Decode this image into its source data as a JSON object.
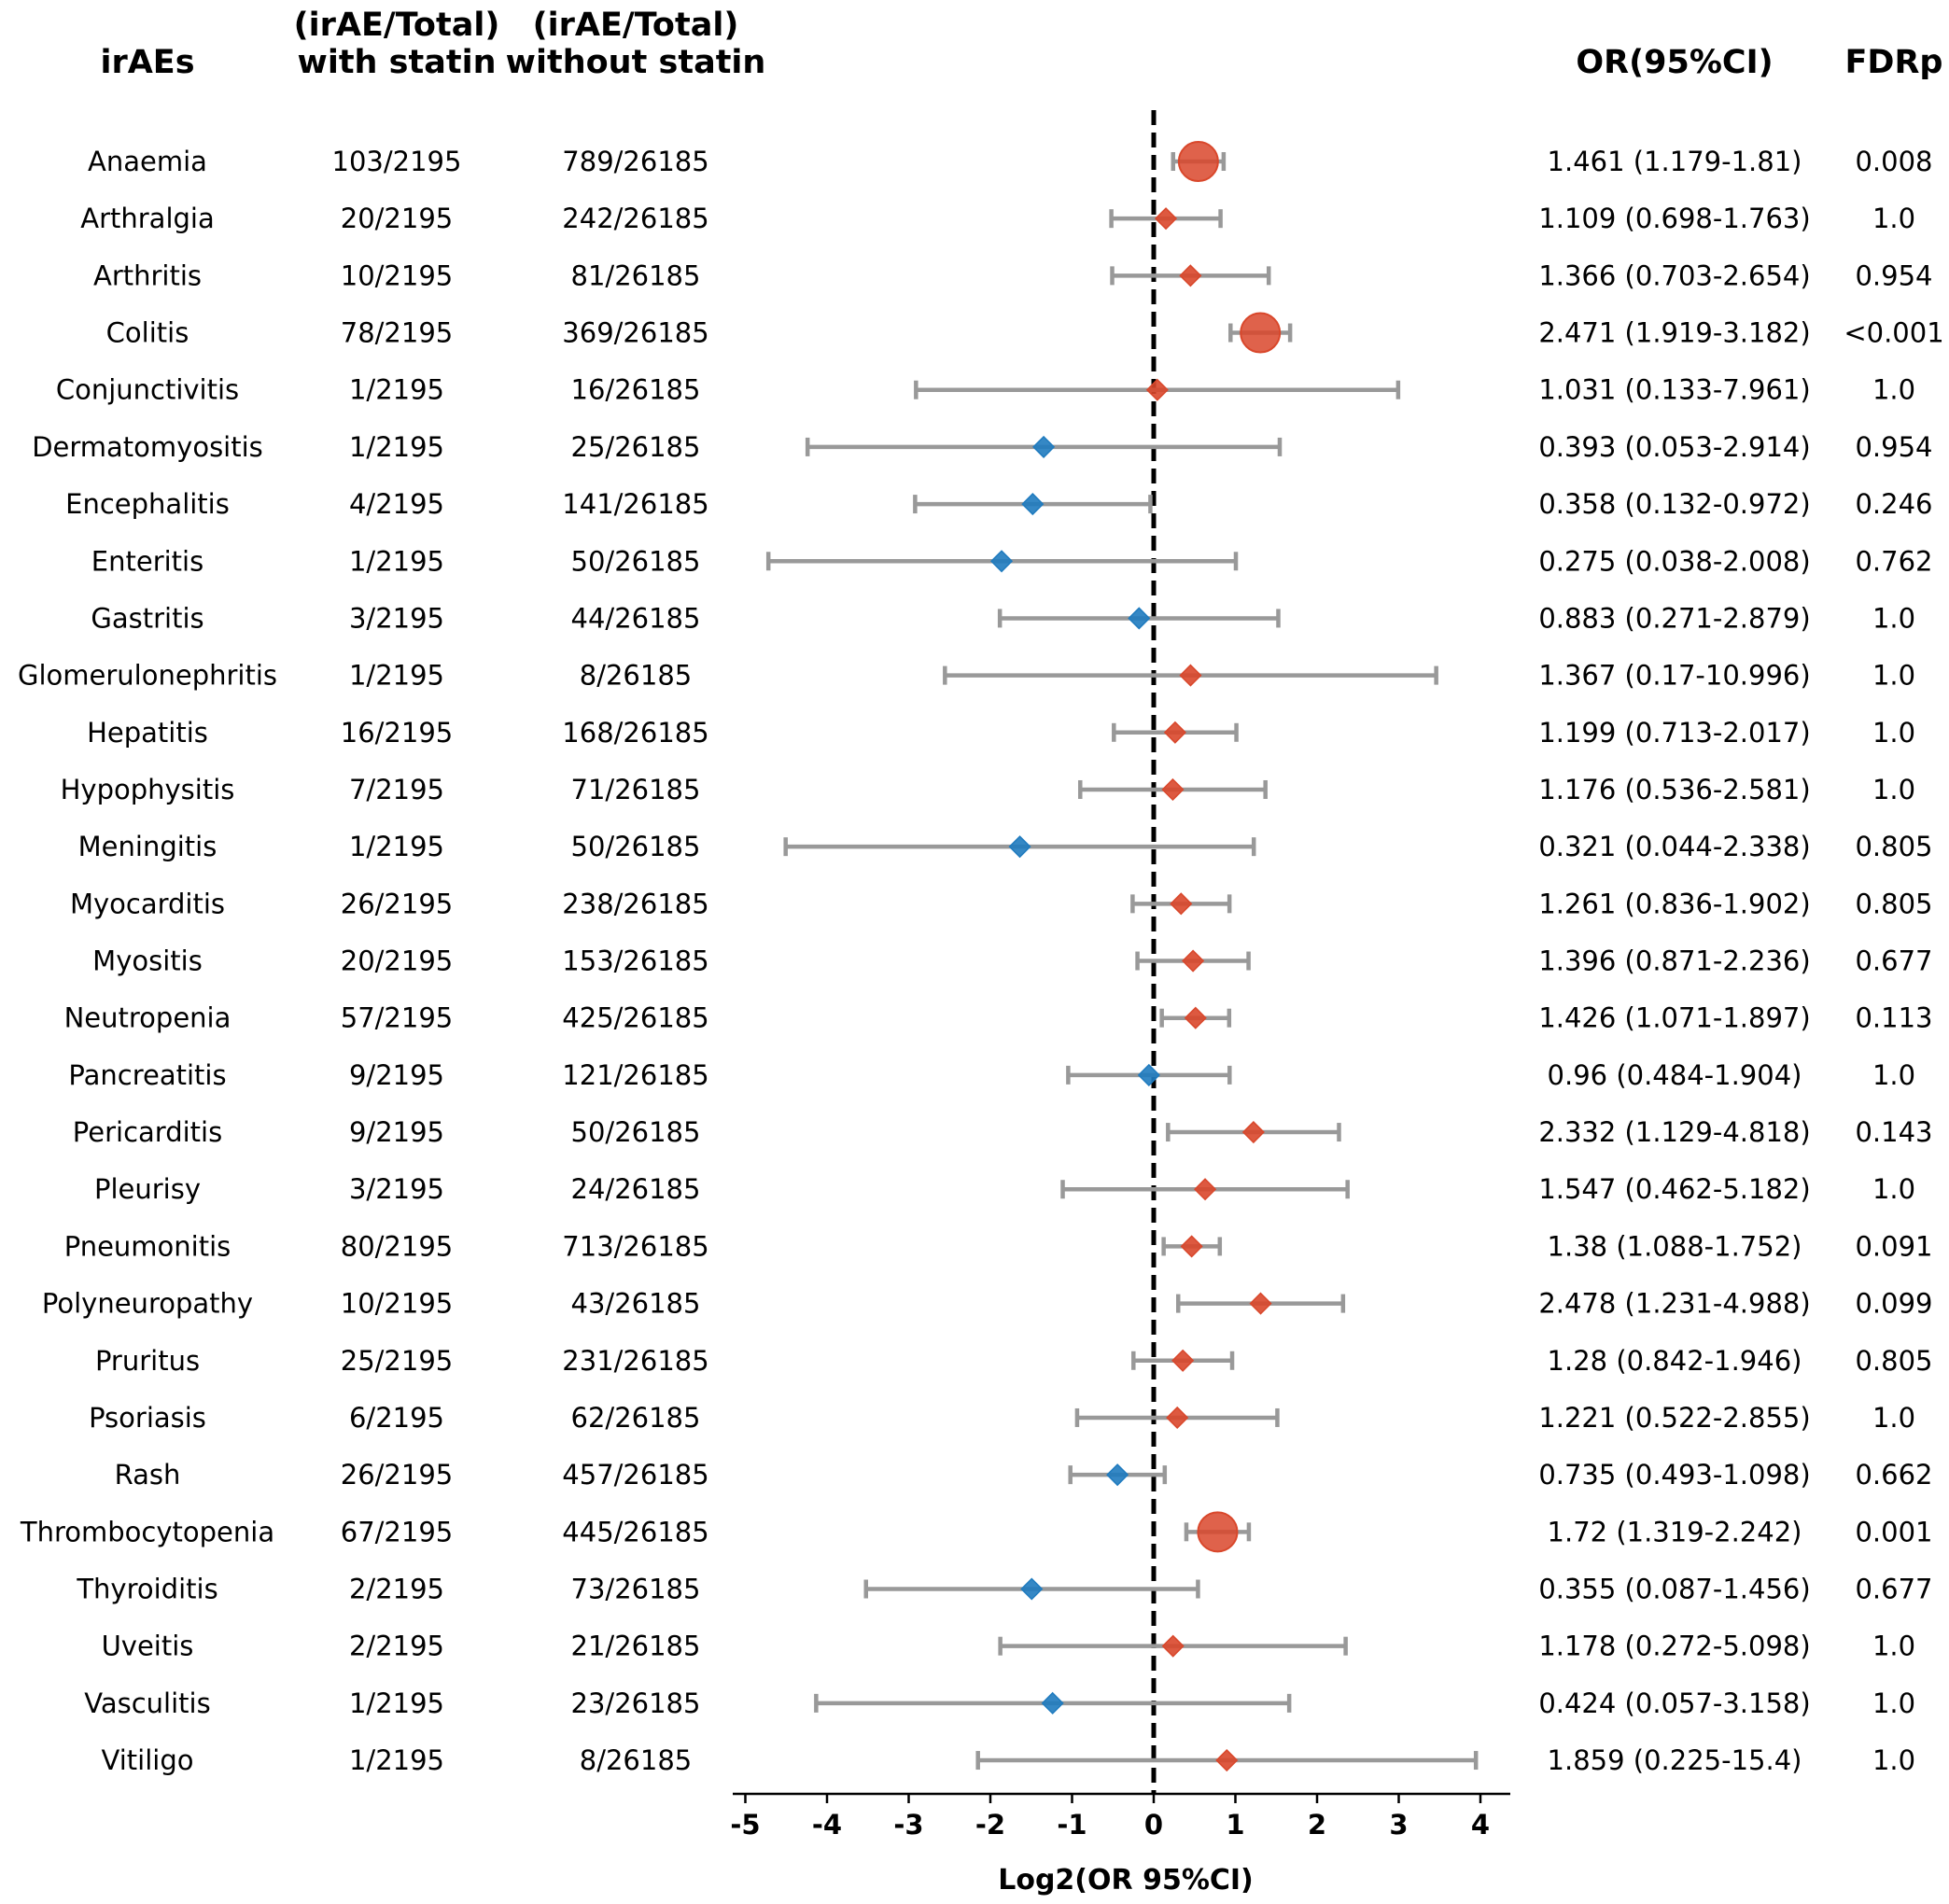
{
  "headers": {
    "irae": "irAEs",
    "with_line1": "(irAE/Total)",
    "with_line2": "with statin",
    "without_line1": "(irAE/Total)",
    "without_line2": "without statin",
    "or": "OR(95%CI)",
    "fdr": "FDRp"
  },
  "colors": {
    "increased": "#d9472b",
    "decreased": "#1f7bbf",
    "errorbar": "#999999",
    "refline": "#000000"
  },
  "chart_data": {
    "type": "forest",
    "xlabel": "Log2(OR 95%CI)",
    "xlim": [
      -5.2,
      4.35
    ],
    "ticks": [
      -5,
      -4,
      -3,
      -2,
      -1,
      0,
      1,
      2,
      3,
      4
    ],
    "tick_labels": [
      "-5",
      "-4",
      "-3",
      "-2",
      "-1",
      "0",
      "1",
      "2",
      "3",
      "4"
    ],
    "reference_line": 0,
    "significant_marker": "large circle",
    "rows": [
      {
        "name": "Anaemia",
        "with_statin": "103/2195",
        "without_statin": "789/26185",
        "or_text": "1.461 (1.179-1.81)",
        "fdr": "0.008",
        "or": 1.461,
        "lo": 1.179,
        "hi": 1.81,
        "significant": true
      },
      {
        "name": "Arthralgia",
        "with_statin": "20/2195",
        "without_statin": "242/26185",
        "or_text": "1.109 (0.698-1.763)",
        "fdr": "1.0",
        "or": 1.109,
        "lo": 0.698,
        "hi": 1.763,
        "significant": false
      },
      {
        "name": "Arthritis",
        "with_statin": "10/2195",
        "without_statin": "81/26185",
        "or_text": "1.366 (0.703-2.654)",
        "fdr": "0.954",
        "or": 1.366,
        "lo": 0.703,
        "hi": 2.654,
        "significant": false
      },
      {
        "name": "Colitis",
        "with_statin": "78/2195",
        "without_statin": "369/26185",
        "or_text": "2.471 (1.919-3.182)",
        "fdr": "<0.001",
        "or": 2.471,
        "lo": 1.919,
        "hi": 3.182,
        "significant": true
      },
      {
        "name": "Conjunctivitis",
        "with_statin": "1/2195",
        "without_statin": "16/26185",
        "or_text": "1.031 (0.133-7.961)",
        "fdr": "1.0",
        "or": 1.031,
        "lo": 0.133,
        "hi": 7.961,
        "significant": false
      },
      {
        "name": "Dermatomyositis",
        "with_statin": "1/2195",
        "without_statin": "25/26185",
        "or_text": "0.393 (0.053-2.914)",
        "fdr": "0.954",
        "or": 0.393,
        "lo": 0.053,
        "hi": 2.914,
        "significant": false
      },
      {
        "name": "Encephalitis",
        "with_statin": "4/2195",
        "without_statin": "141/26185",
        "or_text": "0.358 (0.132-0.972)",
        "fdr": "0.246",
        "or": 0.358,
        "lo": 0.132,
        "hi": 0.972,
        "significant": false
      },
      {
        "name": "Enteritis",
        "with_statin": "1/2195",
        "without_statin": "50/26185",
        "or_text": "0.275 (0.038-2.008)",
        "fdr": "0.762",
        "or": 0.275,
        "lo": 0.038,
        "hi": 2.008,
        "significant": false
      },
      {
        "name": "Gastritis",
        "with_statin": "3/2195",
        "without_statin": "44/26185",
        "or_text": "0.883 (0.271-2.879)",
        "fdr": "1.0",
        "or": 0.883,
        "lo": 0.271,
        "hi": 2.879,
        "significant": false
      },
      {
        "name": "Glomerulonephritis",
        "with_statin": "1/2195",
        "without_statin": "8/26185",
        "or_text": "1.367 (0.17-10.996)",
        "fdr": "1.0",
        "or": 1.367,
        "lo": 0.17,
        "hi": 10.996,
        "significant": false
      },
      {
        "name": "Hepatitis",
        "with_statin": "16/2195",
        "without_statin": "168/26185",
        "or_text": "1.199 (0.713-2.017)",
        "fdr": "1.0",
        "or": 1.199,
        "lo": 0.713,
        "hi": 2.017,
        "significant": false
      },
      {
        "name": "Hypophysitis",
        "with_statin": "7/2195",
        "without_statin": "71/26185",
        "or_text": "1.176 (0.536-2.581)",
        "fdr": "1.0",
        "or": 1.176,
        "lo": 0.536,
        "hi": 2.581,
        "significant": false
      },
      {
        "name": "Meningitis",
        "with_statin": "1/2195",
        "without_statin": "50/26185",
        "or_text": "0.321 (0.044-2.338)",
        "fdr": "0.805",
        "or": 0.321,
        "lo": 0.044,
        "hi": 2.338,
        "significant": false
      },
      {
        "name": "Myocarditis",
        "with_statin": "26/2195",
        "without_statin": "238/26185",
        "or_text": "1.261 (0.836-1.902)",
        "fdr": "0.805",
        "or": 1.261,
        "lo": 0.836,
        "hi": 1.902,
        "significant": false
      },
      {
        "name": "Myositis",
        "with_statin": "20/2195",
        "without_statin": "153/26185",
        "or_text": "1.396 (0.871-2.236)",
        "fdr": "0.677",
        "or": 1.396,
        "lo": 0.871,
        "hi": 2.236,
        "significant": false
      },
      {
        "name": "Neutropenia",
        "with_statin": "57/2195",
        "without_statin": "425/26185",
        "or_text": "1.426 (1.071-1.897)",
        "fdr": "0.113",
        "or": 1.426,
        "lo": 1.071,
        "hi": 1.897,
        "significant": false
      },
      {
        "name": "Pancreatitis",
        "with_statin": "9/2195",
        "without_statin": "121/26185",
        "or_text": "0.96 (0.484-1.904)",
        "fdr": "1.0",
        "or": 0.96,
        "lo": 0.484,
        "hi": 1.904,
        "significant": false
      },
      {
        "name": "Pericarditis",
        "with_statin": "9/2195",
        "without_statin": "50/26185",
        "or_text": "2.332 (1.129-4.818)",
        "fdr": "0.143",
        "or": 2.332,
        "lo": 1.129,
        "hi": 4.818,
        "significant": false
      },
      {
        "name": "Pleurisy",
        "with_statin": "3/2195",
        "without_statin": "24/26185",
        "or_text": "1.547 (0.462-5.182)",
        "fdr": "1.0",
        "or": 1.547,
        "lo": 0.462,
        "hi": 5.182,
        "significant": false
      },
      {
        "name": "Pneumonitis",
        "with_statin": "80/2195",
        "without_statin": "713/26185",
        "or_text": "1.38 (1.088-1.752)",
        "fdr": "0.091",
        "or": 1.38,
        "lo": 1.088,
        "hi": 1.752,
        "significant": false
      },
      {
        "name": "Polyneuropathy",
        "with_statin": "10/2195",
        "without_statin": "43/26185",
        "or_text": "2.478 (1.231-4.988)",
        "fdr": "0.099",
        "or": 2.478,
        "lo": 1.231,
        "hi": 4.988,
        "significant": false
      },
      {
        "name": "Pruritus",
        "with_statin": "25/2195",
        "without_statin": "231/26185",
        "or_text": "1.28 (0.842-1.946)",
        "fdr": "0.805",
        "or": 1.28,
        "lo": 0.842,
        "hi": 1.946,
        "significant": false
      },
      {
        "name": "Psoriasis",
        "with_statin": "6/2195",
        "without_statin": "62/26185",
        "or_text": "1.221 (0.522-2.855)",
        "fdr": "1.0",
        "or": 1.221,
        "lo": 0.522,
        "hi": 2.855,
        "significant": false
      },
      {
        "name": "Rash",
        "with_statin": "26/2195",
        "without_statin": "457/26185",
        "or_text": "0.735 (0.493-1.098)",
        "fdr": "0.662",
        "or": 0.735,
        "lo": 0.493,
        "hi": 1.098,
        "significant": false
      },
      {
        "name": "Thrombocytopenia",
        "with_statin": "67/2195",
        "without_statin": "445/26185",
        "or_text": "1.72 (1.319-2.242)",
        "fdr": "0.001",
        "or": 1.72,
        "lo": 1.319,
        "hi": 2.242,
        "significant": true
      },
      {
        "name": "Thyroiditis",
        "with_statin": "2/2195",
        "without_statin": "73/26185",
        "or_text": "0.355 (0.087-1.456)",
        "fdr": "0.677",
        "or": 0.355,
        "lo": 0.087,
        "hi": 1.456,
        "significant": false
      },
      {
        "name": "Uveitis",
        "with_statin": "2/2195",
        "without_statin": "21/26185",
        "or_text": "1.178 (0.272-5.098)",
        "fdr": "1.0",
        "or": 1.178,
        "lo": 0.272,
        "hi": 5.098,
        "significant": false
      },
      {
        "name": "Vasculitis",
        "with_statin": "1/2195",
        "without_statin": "23/26185",
        "or_text": "0.424 (0.057-3.158)",
        "fdr": "1.0",
        "or": 0.424,
        "lo": 0.057,
        "hi": 3.158,
        "significant": false
      },
      {
        "name": "Vitiligo",
        "with_statin": "1/2195",
        "without_statin": "8/26185",
        "or_text": "1.859 (0.225-15.4)",
        "fdr": "1.0",
        "or": 1.859,
        "lo": 0.225,
        "hi": 15.4,
        "significant": false
      }
    ]
  }
}
